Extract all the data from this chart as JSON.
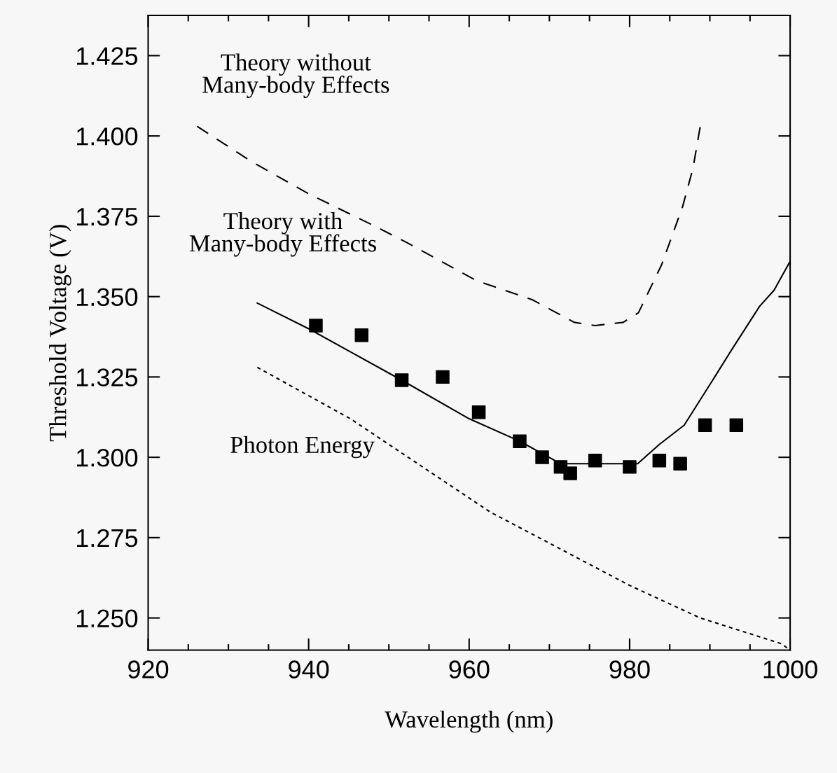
{
  "chart_data": {
    "type": "line",
    "xlabel": "Wavelength (nm)",
    "ylabel": "Threshold Voltage (V)",
    "annotations": [
      "Theory without\nMany-body Effects",
      "Theory with\nMany-body Effects",
      "Photon Energy"
    ],
    "series": [
      {
        "type": "line",
        "line_style": "dashed",
        "color": "#000000",
        "x": [
          926.1,
          932.9,
          940.0,
          948.2,
          952.1,
          960.9,
          967.9,
          973.1,
          975.7,
          979.2,
          981.1,
          984.0,
          986.6,
          987.9,
          988.8
        ],
        "values": [
          1.403,
          1.392,
          1.382,
          1.372,
          1.367,
          1.355,
          1.349,
          1.342,
          1.341,
          1.342,
          1.345,
          1.36,
          1.378,
          1.39,
          1.403
        ]
      },
      {
        "type": "line",
        "line_style": "solid",
        "color": "#000000",
        "x": [
          933.6,
          940.0,
          951.6,
          960.0,
          966.3,
          971.4,
          981.0,
          983.7,
          986.8,
          990.6,
          992.6,
          996.2,
          998.0,
          1000.0
        ],
        "values": [
          1.348,
          1.34,
          1.324,
          1.312,
          1.305,
          1.298,
          1.298,
          1.304,
          1.31,
          1.325,
          1.333,
          1.347,
          1.352,
          1.361
        ]
      },
      {
        "type": "line",
        "line_style": "dotted",
        "color": "#000000",
        "x": [
          933.6,
          945.2,
          962.6,
          980.1,
          988.8,
          998.9,
          1000.0
        ],
        "values": [
          1.328,
          1.312,
          1.283,
          1.26,
          1.25,
          1.242,
          1.24
        ]
      },
      {
        "type": "scatter",
        "marker": "square",
        "color": "#000000",
        "x": [
          940.9,
          946.6,
          951.6,
          956.7,
          961.2,
          966.3,
          969.1,
          971.4,
          972.6,
          975.7,
          980.0,
          983.7,
          986.3,
          989.4,
          993.3
        ],
        "values": [
          1.341,
          1.338,
          1.324,
          1.325,
          1.314,
          1.305,
          1.3,
          1.297,
          1.295,
          1.299,
          1.297,
          1.299,
          1.298,
          1.31,
          1.31
        ]
      }
    ],
    "xlim": [
      920,
      1000
    ],
    "xticks": [
      920,
      940,
      960,
      980,
      1000
    ],
    "ylim": [
      1.24,
      1.4375
    ],
    "yticks": [
      {
        "value": 1.25,
        "label": "1.250"
      },
      {
        "value": 1.275,
        "label": "1.275"
      },
      {
        "value": 1.3,
        "label": "1.300"
      },
      {
        "value": 1.325,
        "label": "1.325"
      },
      {
        "value": 1.35,
        "label": "1.350"
      },
      {
        "value": 1.375,
        "label": "1.375"
      },
      {
        "value": 1.4,
        "label": "1.400"
      },
      {
        "value": 1.425,
        "label": "1.425"
      }
    ],
    "grid": false,
    "legend": false
  }
}
